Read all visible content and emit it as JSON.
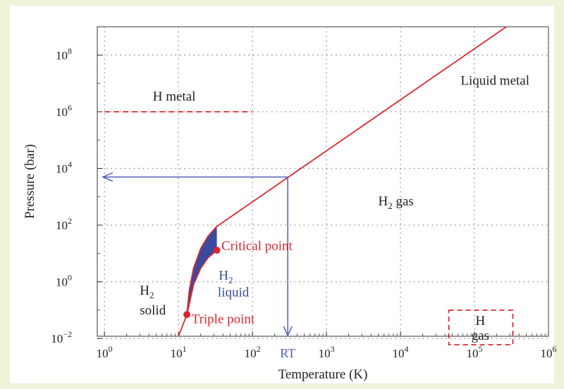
{
  "chart_data": {
    "type": "line",
    "x_scale": "log",
    "y_scale": "log",
    "xlim": [
      0.8,
      1000000
    ],
    "ylim": [
      0.012,
      1000000000
    ],
    "grid": true,
    "xlabel": "Temperature (K)",
    "ylabel": "Pressure (bar)",
    "x_ticks": [
      {
        "value": 1,
        "base": "10",
        "exp": "0"
      },
      {
        "value": 10,
        "base": "10",
        "exp": "1"
      },
      {
        "value": 100,
        "base": "10",
        "exp": "2"
      },
      {
        "value": 1000,
        "base": "10",
        "exp": "3"
      },
      {
        "value": 10000,
        "base": "10",
        "exp": "4"
      },
      {
        "value": 100000,
        "base": "10",
        "exp": "5"
      },
      {
        "value": 1000000,
        "base": "10",
        "exp": "6"
      }
    ],
    "y_ticks": [
      {
        "value": 0.01,
        "base": "10",
        "exp": "−2"
      },
      {
        "value": 1,
        "base": "10",
        "exp": "0"
      },
      {
        "value": 100,
        "base": "10",
        "exp": "2"
      },
      {
        "value": 10000,
        "base": "10",
        "exp": "4"
      },
      {
        "value": 1000000,
        "base": "10",
        "exp": "6"
      },
      {
        "value": 100000000,
        "base": "10",
        "exp": "8"
      }
    ],
    "series": [
      {
        "color": "#d8282f",
        "style": "solid",
        "x": [
          10,
          13
        ],
        "y": [
          0.012,
          0.07
        ]
      },
      {
        "color": "#d8282f",
        "style": "solid",
        "x": [
          13,
          14,
          16,
          20,
          25,
          33
        ],
        "y": [
          0.07,
          0.5,
          3,
          15,
          40,
          90
        ]
      },
      {
        "color": "#d8282f",
        "style": "solid",
        "x": [
          13,
          16,
          20,
          25,
          33
        ],
        "y": [
          0.07,
          0.8,
          3,
          7,
          13
        ]
      },
      {
        "color": "#d8282f",
        "style": "solid",
        "x": [
          33,
          270000
        ],
        "y": [
          90,
          1000000000
        ]
      },
      {
        "color": "#d8282f",
        "style": "dashed",
        "x": [
          1,
          100
        ],
        "y": [
          1000000,
          1000000
        ]
      }
    ],
    "liquid_region": {
      "color": "#3a4aa0",
      "upper": {
        "x": [
          13,
          14,
          16,
          20,
          25,
          33
        ],
        "y": [
          0.07,
          0.5,
          3,
          15,
          40,
          90
        ]
      },
      "lower": {
        "x": [
          13,
          16,
          20,
          25,
          33
        ],
        "y": [
          0.07,
          0.8,
          3,
          7,
          13
        ]
      }
    },
    "points": [
      {
        "name": "Critical point",
        "x": 33,
        "y": 13,
        "color": "#d8282f"
      },
      {
        "name": "Triple point",
        "x": 13,
        "y": 0.07,
        "color": "#d8282f"
      }
    ],
    "gas_box": {
      "x": [
        45000,
        330000
      ],
      "y": [
        0.006,
        0.1
      ],
      "color": "#d8282f"
    },
    "room_temperature": {
      "label": "RT",
      "x": 300,
      "y": 5000,
      "color": "#5060b8"
    },
    "region_labels": [
      {
        "text": "H metal",
        "x": 4.5,
        "y": 2500000,
        "color": "#222222"
      },
      {
        "text": "Liquid metal",
        "x": 65000,
        "y": 9000000,
        "color": "#222222"
      },
      {
        "text": "H₂ gas",
        "x": 5000,
        "y": 500,
        "color": "#222222"
      },
      {
        "text": "Critical point",
        "x": 38,
        "y": 13,
        "color": "#d8282f"
      },
      {
        "text": "H₂",
        "x": 35,
        "y": 1.2,
        "color": "#3a4aa0"
      },
      {
        "text": "liquid",
        "x": 34,
        "y": 0.3,
        "color": "#3a4aa0"
      },
      {
        "text": "H₂",
        "x": 3,
        "y": 0.35,
        "color": "#222222"
      },
      {
        "text": "solid",
        "x": 3,
        "y": 0.07,
        "color": "#222222"
      },
      {
        "text": "Triple point",
        "x": 15,
        "y": 0.035,
        "color": "#d8282f"
      },
      {
        "text": "H",
        "x": 120000,
        "y": 0.03,
        "color": "#222222"
      },
      {
        "text": "gas",
        "x": 120000,
        "y": 0.009,
        "color": "#222222"
      }
    ]
  }
}
